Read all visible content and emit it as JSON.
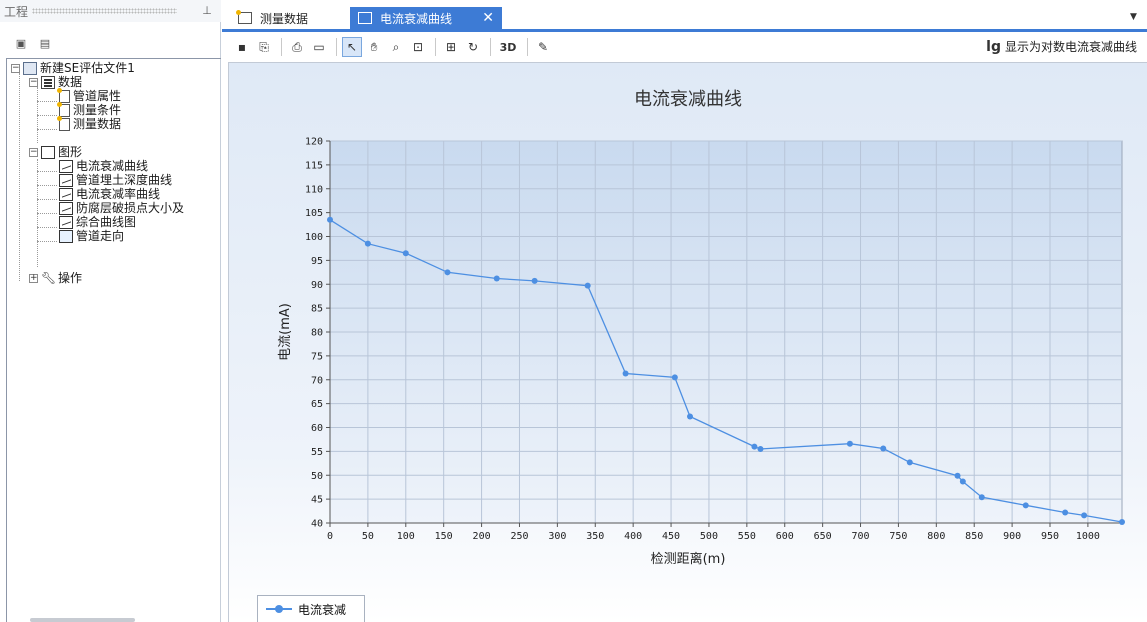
{
  "panel": {
    "title": "工程",
    "tree": {
      "root": "新建SE评估文件1",
      "data_group": "数据",
      "data_items": [
        "管道属性",
        "测量条件",
        "测量数据"
      ],
      "graph_group": "图形",
      "graph_items": [
        "电流衰减曲线",
        "管道埋土深度曲线",
        "电流衰减率曲线",
        "防腐层破损点大小及",
        "综合曲线图",
        "管道走向"
      ],
      "action_group": "操作"
    }
  },
  "tabs": [
    {
      "label": "测量数据",
      "active": false
    },
    {
      "label": "电流衰减曲线",
      "active": true
    }
  ],
  "toolbar": {
    "three_d_label": "3D",
    "log_toggle_icon": "lg",
    "log_toggle_label": "显示为对数电流衰减曲线"
  },
  "colors": {
    "accent": "#3d7bd5",
    "series": "#4d8fe2"
  },
  "chart_data": {
    "type": "line",
    "title": "电流衰减曲线",
    "xlabel": "检测距离(m)",
    "ylabel": "电流(mA)",
    "xlim": [
      0,
      1045
    ],
    "ylim": [
      40,
      120
    ],
    "xticks": [
      0,
      50,
      100,
      150,
      200,
      250,
      300,
      350,
      400,
      450,
      500,
      550,
      600,
      650,
      700,
      750,
      800,
      850,
      900,
      950,
      1000
    ],
    "yticks": [
      40,
      45,
      50,
      55,
      60,
      65,
      70,
      75,
      80,
      85,
      90,
      95,
      100,
      105,
      110,
      115,
      120
    ],
    "grid": true,
    "legend_position": "bottom-left",
    "series": [
      {
        "name": "电流衰减",
        "x": [
          0,
          50,
          100,
          155,
          220,
          270,
          340,
          390,
          455,
          475,
          560,
          568,
          686,
          730,
          765,
          828,
          835,
          860,
          918,
          970,
          995,
          1045
        ],
        "y": [
          103.5,
          98.5,
          96.5,
          92.5,
          91.2,
          90.7,
          89.7,
          71.3,
          70.5,
          62.3,
          56,
          55.5,
          56.6,
          55.6,
          52.7,
          49.9,
          48.7,
          45.4,
          43.7,
          42.2,
          41.6,
          40.2
        ]
      }
    ]
  }
}
